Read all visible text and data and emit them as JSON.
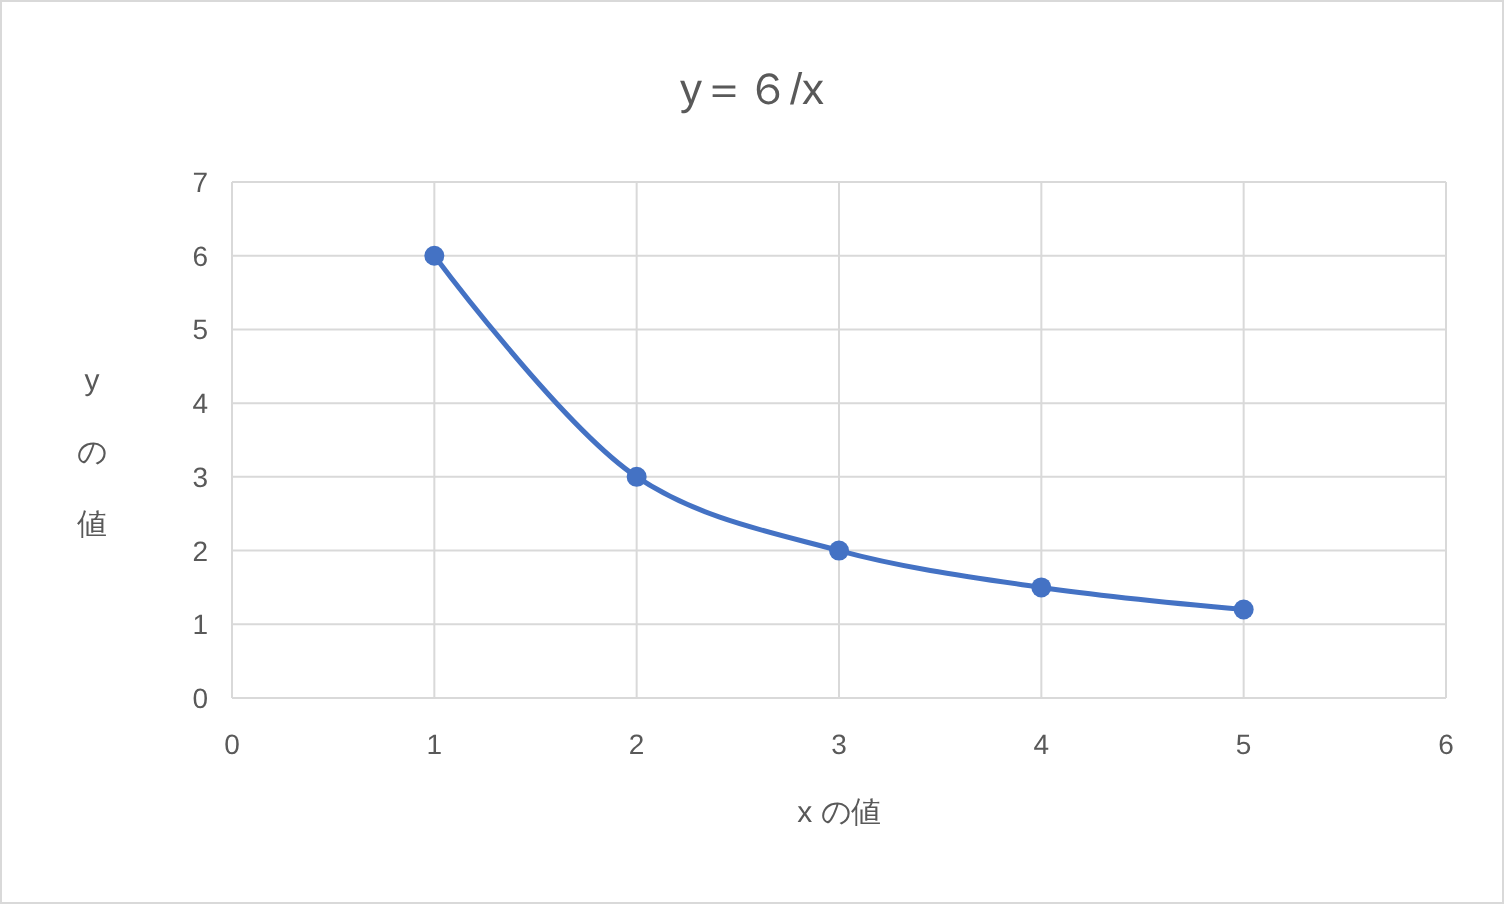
{
  "chart_data": {
    "type": "line",
    "title": "y＝６/x",
    "xlabel": "x の値",
    "ylabel": "yの値",
    "x": [
      1,
      2,
      3,
      4,
      5
    ],
    "series": [
      {
        "color": "#4472c4",
        "values": [
          6,
          3,
          2,
          1.5,
          1.2
        ]
      }
    ],
    "xlim": [
      0,
      6
    ],
    "xticks": [
      0,
      1,
      2,
      3,
      4,
      5,
      6
    ],
    "ylim": [
      0,
      7
    ],
    "yticks": [
      0,
      1,
      2,
      3,
      4,
      5,
      6,
      7
    ],
    "grid": true,
    "marker": "circle",
    "line_style": "solid"
  }
}
